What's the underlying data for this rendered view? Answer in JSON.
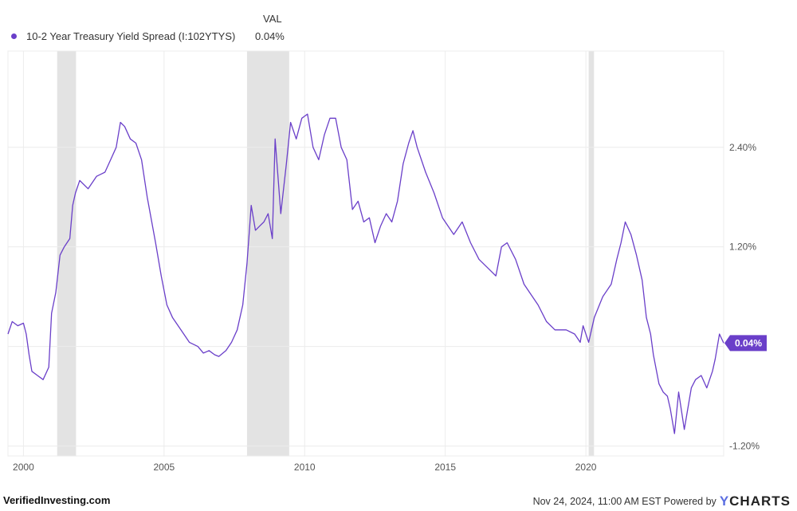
{
  "legend": {
    "val_header": "VAL",
    "series_name": "10-2 Year Treasury Yield Spread (I:102YTYS)",
    "series_value": "0.04%"
  },
  "footer": {
    "site": "VerifiedInvesting.com",
    "timestamp": "Nov 24, 2024, 11:00 AM EST Powered by",
    "brand_y": "Y",
    "brand_rest": "CHARTS"
  },
  "colors": {
    "series": "#6a3fc9",
    "recession": "#e3e3e3",
    "grid": "#ececec"
  },
  "chart_data": {
    "type": "line",
    "title": "",
    "xlabel": "",
    "ylabel": "",
    "xlim": [
      1999.45,
      2024.9
    ],
    "ylim": [
      -1.32,
      3.56
    ],
    "y_ticks": [
      -1.2,
      0,
      1.2,
      2.4
    ],
    "y_tick_labels": [
      "-1.20%",
      "",
      "1.20%",
      "2.40%"
    ],
    "x_ticks": [
      2000,
      2005,
      2010,
      2015,
      2020
    ],
    "x_tick_labels": [
      "2000",
      "2005",
      "2010",
      "2015",
      "2020"
    ],
    "last_value_label": "0.04%",
    "last_value": 0.04,
    "recessions": [
      [
        2001.2,
        2001.87
      ],
      [
        2007.95,
        2009.45
      ],
      [
        2020.1,
        2020.29
      ]
    ],
    "series": [
      {
        "name": "10-2 Year Treasury Yield Spread (I:102YTYS)",
        "x": [
          1999.45,
          1999.6,
          1999.8,
          2000.0,
          2000.1,
          2000.2,
          2000.3,
          2000.5,
          2000.7,
          2000.9,
          2001.0,
          2001.15,
          2001.3,
          2001.45,
          2001.65,
          2001.75,
          2001.85,
          2002.0,
          2002.3,
          2002.6,
          2002.9,
          2003.1,
          2003.3,
          2003.45,
          2003.6,
          2003.8,
          2004.0,
          2004.2,
          2004.4,
          2004.7,
          2004.9,
          2005.1,
          2005.3,
          2005.6,
          2005.9,
          2006.2,
          2006.4,
          2006.6,
          2006.8,
          2006.95,
          2007.2,
          2007.4,
          2007.6,
          2007.8,
          2007.95,
          2008.1,
          2008.25,
          2008.4,
          2008.55,
          2008.7,
          2008.85,
          2008.95,
          2009.15,
          2009.35,
          2009.5,
          2009.7,
          2009.9,
          2010.1,
          2010.3,
          2010.5,
          2010.7,
          2010.9,
          2011.1,
          2011.3,
          2011.5,
          2011.7,
          2011.9,
          2012.1,
          2012.3,
          2012.5,
          2012.7,
          2012.9,
          2013.1,
          2013.3,
          2013.5,
          2013.7,
          2013.85,
          2014.0,
          2014.3,
          2014.6,
          2014.9,
          2015.1,
          2015.3,
          2015.6,
          2015.9,
          2016.2,
          2016.5,
          2016.8,
          2017.0,
          2017.2,
          2017.5,
          2017.8,
          2018.0,
          2018.3,
          2018.6,
          2018.9,
          2019.1,
          2019.3,
          2019.6,
          2019.8,
          2019.9,
          2020.1,
          2020.3,
          2020.6,
          2020.9,
          2021.1,
          2021.25,
          2021.4,
          2021.6,
          2021.8,
          2022.0,
          2022.15,
          2022.3,
          2022.4,
          2022.6,
          2022.75,
          2022.9,
          2023.0,
          2023.15,
          2023.3,
          2023.5,
          2023.6,
          2023.75,
          2023.9,
          2024.1,
          2024.3,
          2024.5,
          2024.6,
          2024.75,
          2024.9
        ],
        "y": [
          0.15,
          0.3,
          0.25,
          0.28,
          0.15,
          -0.1,
          -0.3,
          -0.35,
          -0.4,
          -0.25,
          0.4,
          0.65,
          1.1,
          1.2,
          1.3,
          1.7,
          1.85,
          2.0,
          1.9,
          2.05,
          2.1,
          2.25,
          2.4,
          2.7,
          2.65,
          2.5,
          2.45,
          2.25,
          1.8,
          1.25,
          0.85,
          0.5,
          0.35,
          0.2,
          0.05,
          0.0,
          -0.08,
          -0.05,
          -0.1,
          -0.12,
          -0.05,
          0.05,
          0.2,
          0.5,
          1.0,
          1.7,
          1.4,
          1.45,
          1.5,
          1.6,
          1.3,
          2.5,
          1.6,
          2.2,
          2.7,
          2.5,
          2.75,
          2.8,
          2.4,
          2.25,
          2.55,
          2.75,
          2.75,
          2.4,
          2.25,
          1.65,
          1.75,
          1.5,
          1.55,
          1.25,
          1.45,
          1.6,
          1.5,
          1.75,
          2.2,
          2.45,
          2.6,
          2.4,
          2.1,
          1.85,
          1.55,
          1.45,
          1.35,
          1.5,
          1.25,
          1.05,
          0.95,
          0.85,
          1.2,
          1.25,
          1.05,
          0.75,
          0.65,
          0.5,
          0.3,
          0.2,
          0.2,
          0.2,
          0.15,
          0.05,
          0.25,
          0.05,
          0.35,
          0.6,
          0.75,
          1.05,
          1.25,
          1.5,
          1.35,
          1.1,
          0.8,
          0.35,
          0.15,
          -0.1,
          -0.45,
          -0.55,
          -0.6,
          -0.75,
          -1.05,
          -0.55,
          -1.0,
          -0.8,
          -0.5,
          -0.4,
          -0.35,
          -0.5,
          -0.3,
          -0.15,
          0.15,
          0.04
        ]
      }
    ]
  }
}
